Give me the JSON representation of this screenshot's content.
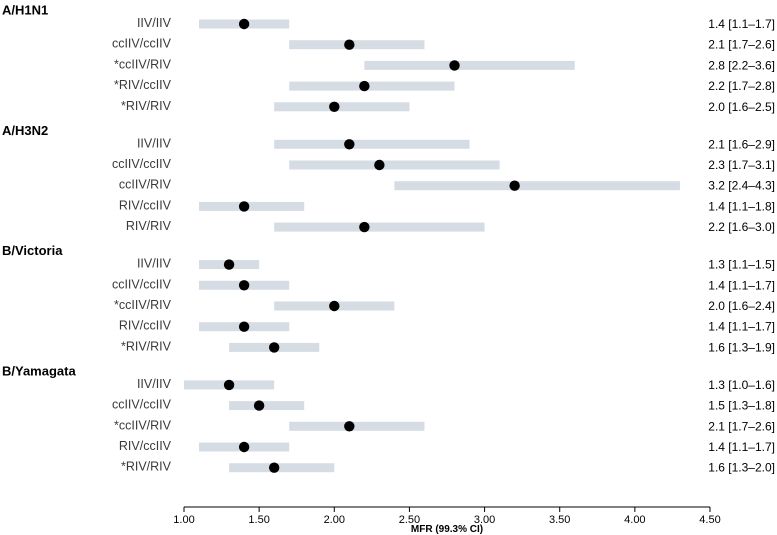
{
  "chart_data": {
    "type": "forest",
    "xlabel": "MFR (99.3% CI)",
    "xlim": [
      1.0,
      4.5
    ],
    "x_ticks": [
      "1.00",
      "1.50",
      "2.00",
      "2.50",
      "3.00",
      "3.50",
      "4.00",
      "4.50"
    ],
    "x_tick_values": [
      1.0,
      1.5,
      2.0,
      2.5,
      3.0,
      3.5,
      4.0,
      4.5
    ],
    "groups": [
      {
        "name": "A/H1N1",
        "rows": [
          {
            "label": "IIV/IIV",
            "mfr": 1.4,
            "lo": 1.1,
            "hi": 1.7,
            "text": "1.4 [1.1–1.7]"
          },
          {
            "label": "ccIIV/ccIIV",
            "mfr": 2.1,
            "lo": 1.7,
            "hi": 2.6,
            "text": "2.1 [1.7–2.6]"
          },
          {
            "label": "*ccIIV/RIV",
            "mfr": 2.8,
            "lo": 2.2,
            "hi": 3.6,
            "text": "2.8 [2.2–3.6]"
          },
          {
            "label": "*RIV/ccIIV",
            "mfr": 2.2,
            "lo": 1.7,
            "hi": 2.8,
            "text": "2.2 [1.7–2.8]"
          },
          {
            "label": "*RIV/RIV",
            "mfr": 2.0,
            "lo": 1.6,
            "hi": 2.5,
            "text": "2.0 [1.6–2.5]"
          }
        ]
      },
      {
        "name": "A/H3N2",
        "rows": [
          {
            "label": "IIV/IIV",
            "mfr": 2.1,
            "lo": 1.6,
            "hi": 2.9,
            "text": "2.1 [1.6–2.9]"
          },
          {
            "label": "ccIIV/ccIIV",
            "mfr": 2.3,
            "lo": 1.7,
            "hi": 3.1,
            "text": "2.3 [1.7–3.1]"
          },
          {
            "label": "ccIIV/RIV",
            "mfr": 3.2,
            "lo": 2.4,
            "hi": 4.3,
            "text": "3.2 [2.4–4.3]"
          },
          {
            "label": "RIV/ccIIV",
            "mfr": 1.4,
            "lo": 1.1,
            "hi": 1.8,
            "text": "1.4 [1.1–1.8]"
          },
          {
            "label": "RIV/RIV",
            "mfr": 2.2,
            "lo": 1.6,
            "hi": 3.0,
            "text": "2.2 [1.6–3.0]"
          }
        ]
      },
      {
        "name": "B/Victoria",
        "rows": [
          {
            "label": "IIV/IIV",
            "mfr": 1.3,
            "lo": 1.1,
            "hi": 1.5,
            "text": "1.3 [1.1–1.5]"
          },
          {
            "label": "ccIIV/ccIIV",
            "mfr": 1.4,
            "lo": 1.1,
            "hi": 1.7,
            "text": "1.4 [1.1–1.7]"
          },
          {
            "label": "*ccIIV/RIV",
            "mfr": 2.0,
            "lo": 1.6,
            "hi": 2.4,
            "text": "2.0 [1.6–2.4]"
          },
          {
            "label": "RIV/ccIIV",
            "mfr": 1.4,
            "lo": 1.1,
            "hi": 1.7,
            "text": "1.4 [1.1–1.7]"
          },
          {
            "label": "*RIV/RIV",
            "mfr": 1.6,
            "lo": 1.3,
            "hi": 1.9,
            "text": "1.6 [1.3–1.9]"
          }
        ]
      },
      {
        "name": "B/Yamagata",
        "rows": [
          {
            "label": "IIV/IIV",
            "mfr": 1.3,
            "lo": 1.0,
            "hi": 1.6,
            "text": "1.3 [1.0–1.6]"
          },
          {
            "label": "ccIIV/ccIIV",
            "mfr": 1.5,
            "lo": 1.3,
            "hi": 1.8,
            "text": "1.5 [1.3–1.8]"
          },
          {
            "label": "*ccIIV/RIV",
            "mfr": 2.1,
            "lo": 1.7,
            "hi": 2.6,
            "text": "2.1 [1.7–2.6]"
          },
          {
            "label": "RIV/ccIIV",
            "mfr": 1.4,
            "lo": 1.1,
            "hi": 1.7,
            "text": "1.4 [1.1–1.7]"
          },
          {
            "label": "*RIV/RIV",
            "mfr": 1.6,
            "lo": 1.3,
            "hi": 2.0,
            "text": "1.6 [1.3–2.0]"
          }
        ]
      }
    ]
  },
  "colors": {
    "ci_bar": "#d6dce4",
    "point": "#000000",
    "axis": "#000000",
    "text": "#000000"
  }
}
